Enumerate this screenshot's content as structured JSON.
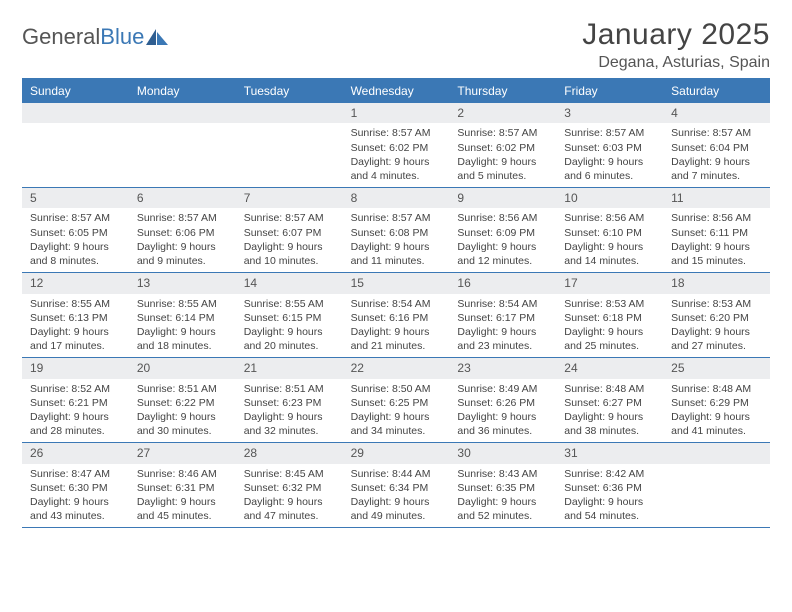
{
  "logo": {
    "word1": "General",
    "word2": "Blue"
  },
  "title": "January 2025",
  "location": "Degana, Asturias, Spain",
  "colors": {
    "accent": "#3b78b5",
    "header_bg": "#3b78b5",
    "header_text": "#ffffff",
    "daynum_bg": "#ecedef",
    "body_text": "#444444",
    "title_text": "#444444",
    "page_bg": "#ffffff"
  },
  "layout": {
    "columns": 7,
    "rows": 5,
    "day_header_fontsize": 12,
    "daynum_fontsize": 12,
    "cell_fontsize": 10.5,
    "title_fontsize": 30,
    "location_fontsize": 16
  },
  "day_names": [
    "Sunday",
    "Monday",
    "Tuesday",
    "Wednesday",
    "Thursday",
    "Friday",
    "Saturday"
  ],
  "weeks": [
    [
      {
        "empty": true
      },
      {
        "empty": true
      },
      {
        "empty": true
      },
      {
        "day": "1",
        "sunrise": "8:57 AM",
        "sunset": "6:02 PM",
        "daylight": "9 hours and 4 minutes."
      },
      {
        "day": "2",
        "sunrise": "8:57 AM",
        "sunset": "6:02 PM",
        "daylight": "9 hours and 5 minutes."
      },
      {
        "day": "3",
        "sunrise": "8:57 AM",
        "sunset": "6:03 PM",
        "daylight": "9 hours and 6 minutes."
      },
      {
        "day": "4",
        "sunrise": "8:57 AM",
        "sunset": "6:04 PM",
        "daylight": "9 hours and 7 minutes."
      }
    ],
    [
      {
        "day": "5",
        "sunrise": "8:57 AM",
        "sunset": "6:05 PM",
        "daylight": "9 hours and 8 minutes."
      },
      {
        "day": "6",
        "sunrise": "8:57 AM",
        "sunset": "6:06 PM",
        "daylight": "9 hours and 9 minutes."
      },
      {
        "day": "7",
        "sunrise": "8:57 AM",
        "sunset": "6:07 PM",
        "daylight": "9 hours and 10 minutes."
      },
      {
        "day": "8",
        "sunrise": "8:57 AM",
        "sunset": "6:08 PM",
        "daylight": "9 hours and 11 minutes."
      },
      {
        "day": "9",
        "sunrise": "8:56 AM",
        "sunset": "6:09 PM",
        "daylight": "9 hours and 12 minutes."
      },
      {
        "day": "10",
        "sunrise": "8:56 AM",
        "sunset": "6:10 PM",
        "daylight": "9 hours and 14 minutes."
      },
      {
        "day": "11",
        "sunrise": "8:56 AM",
        "sunset": "6:11 PM",
        "daylight": "9 hours and 15 minutes."
      }
    ],
    [
      {
        "day": "12",
        "sunrise": "8:55 AM",
        "sunset": "6:13 PM",
        "daylight": "9 hours and 17 minutes."
      },
      {
        "day": "13",
        "sunrise": "8:55 AM",
        "sunset": "6:14 PM",
        "daylight": "9 hours and 18 minutes."
      },
      {
        "day": "14",
        "sunrise": "8:55 AM",
        "sunset": "6:15 PM",
        "daylight": "9 hours and 20 minutes."
      },
      {
        "day": "15",
        "sunrise": "8:54 AM",
        "sunset": "6:16 PM",
        "daylight": "9 hours and 21 minutes."
      },
      {
        "day": "16",
        "sunrise": "8:54 AM",
        "sunset": "6:17 PM",
        "daylight": "9 hours and 23 minutes."
      },
      {
        "day": "17",
        "sunrise": "8:53 AM",
        "sunset": "6:18 PM",
        "daylight": "9 hours and 25 minutes."
      },
      {
        "day": "18",
        "sunrise": "8:53 AM",
        "sunset": "6:20 PM",
        "daylight": "9 hours and 27 minutes."
      }
    ],
    [
      {
        "day": "19",
        "sunrise": "8:52 AM",
        "sunset": "6:21 PM",
        "daylight": "9 hours and 28 minutes."
      },
      {
        "day": "20",
        "sunrise": "8:51 AM",
        "sunset": "6:22 PM",
        "daylight": "9 hours and 30 minutes."
      },
      {
        "day": "21",
        "sunrise": "8:51 AM",
        "sunset": "6:23 PM",
        "daylight": "9 hours and 32 minutes."
      },
      {
        "day": "22",
        "sunrise": "8:50 AM",
        "sunset": "6:25 PM",
        "daylight": "9 hours and 34 minutes."
      },
      {
        "day": "23",
        "sunrise": "8:49 AM",
        "sunset": "6:26 PM",
        "daylight": "9 hours and 36 minutes."
      },
      {
        "day": "24",
        "sunrise": "8:48 AM",
        "sunset": "6:27 PM",
        "daylight": "9 hours and 38 minutes."
      },
      {
        "day": "25",
        "sunrise": "8:48 AM",
        "sunset": "6:29 PM",
        "daylight": "9 hours and 41 minutes."
      }
    ],
    [
      {
        "day": "26",
        "sunrise": "8:47 AM",
        "sunset": "6:30 PM",
        "daylight": "9 hours and 43 minutes."
      },
      {
        "day": "27",
        "sunrise": "8:46 AM",
        "sunset": "6:31 PM",
        "daylight": "9 hours and 45 minutes."
      },
      {
        "day": "28",
        "sunrise": "8:45 AM",
        "sunset": "6:32 PM",
        "daylight": "9 hours and 47 minutes."
      },
      {
        "day": "29",
        "sunrise": "8:44 AM",
        "sunset": "6:34 PM",
        "daylight": "9 hours and 49 minutes."
      },
      {
        "day": "30",
        "sunrise": "8:43 AM",
        "sunset": "6:35 PM",
        "daylight": "9 hours and 52 minutes."
      },
      {
        "day": "31",
        "sunrise": "8:42 AM",
        "sunset": "6:36 PM",
        "daylight": "9 hours and 54 minutes."
      },
      {
        "empty": true
      }
    ]
  ],
  "labels": {
    "sunrise_prefix": "Sunrise: ",
    "sunset_prefix": "Sunset: ",
    "daylight_prefix": "Daylight: "
  }
}
